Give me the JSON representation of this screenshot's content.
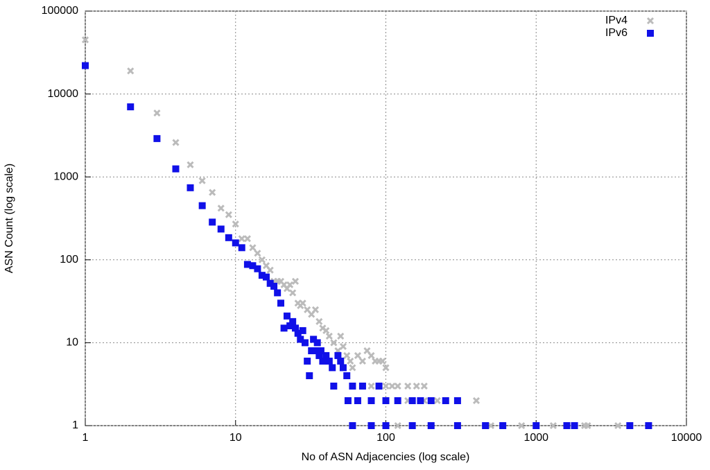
{
  "chart_data": {
    "type": "scatter",
    "xlabel": "No of ASN Adjacencies (log scale)",
    "ylabel": "ASN Count (log scale)",
    "xscale": "log",
    "yscale": "log",
    "xlim": [
      1,
      10000
    ],
    "ylim": [
      1,
      100000
    ],
    "xticks": [
      1,
      10,
      100,
      1000,
      10000
    ],
    "yticks": [
      1,
      10,
      100,
      1000,
      10000,
      100000
    ],
    "grid": true,
    "legend": "top-right",
    "series": [
      {
        "name": "IPv4",
        "color": "#bbbbbb",
        "marker": "x",
        "x": [
          1,
          2,
          3,
          4,
          5,
          6,
          7,
          8,
          9,
          10,
          11,
          12,
          13,
          14,
          15,
          16,
          17,
          18,
          19,
          20,
          21,
          22,
          23,
          24,
          25,
          26,
          27,
          28,
          30,
          32,
          34,
          36,
          38,
          40,
          42,
          45,
          48,
          50,
          52,
          55,
          58,
          60,
          65,
          70,
          75,
          80,
          85,
          90,
          95,
          100,
          70,
          80,
          90,
          100,
          110,
          120,
          140,
          160,
          180,
          140,
          180,
          220,
          250,
          400,
          120,
          200,
          300,
          500,
          800,
          1300,
          2100,
          2200,
          3500
        ],
        "values": [
          45000,
          19000,
          5900,
          2600,
          1400,
          900,
          650,
          420,
          350,
          270,
          180,
          180,
          140,
          120,
          100,
          85,
          75,
          55,
          55,
          55,
          50,
          45,
          50,
          40,
          55,
          30,
          28,
          30,
          25,
          22,
          25,
          18,
          15,
          14,
          12,
          10,
          8,
          12,
          9,
          7,
          6,
          5,
          7,
          6,
          8,
          7,
          6,
          6,
          6,
          5,
          3,
          3,
          3,
          3,
          3,
          3,
          3,
          3,
          3,
          2,
          2,
          2,
          2,
          2,
          1,
          1,
          1,
          1,
          1,
          1,
          1,
          1,
          1
        ]
      },
      {
        "name": "IPv6",
        "color": "#1010e8",
        "marker": "square",
        "x": [
          1,
          2,
          3,
          4,
          5,
          6,
          7,
          8,
          9,
          10,
          11,
          12,
          13,
          14,
          15,
          16,
          17,
          18,
          19,
          20,
          21,
          22,
          23,
          24,
          25,
          26,
          27,
          28,
          29,
          30,
          31,
          32,
          33,
          34,
          35,
          36,
          37,
          38,
          40,
          42,
          44,
          45,
          48,
          50,
          52,
          55,
          56,
          60,
          65,
          70,
          80,
          90,
          100,
          120,
          150,
          170,
          200,
          250,
          300,
          60,
          80,
          100,
          150,
          200,
          300,
          460,
          600,
          1000,
          1600,
          1800,
          4200,
          5600
        ],
        "values": [
          22000,
          7000,
          2900,
          1250,
          740,
          450,
          285,
          235,
          185,
          160,
          140,
          88,
          85,
          78,
          65,
          62,
          52,
          48,
          40,
          30,
          15,
          21,
          16,
          18,
          15,
          13,
          11,
          14,
          10,
          6,
          4,
          8,
          11,
          8,
          10,
          7,
          8,
          6,
          7,
          6,
          5,
          3,
          7,
          6,
          5,
          4,
          2,
          3,
          2,
          3,
          2,
          3,
          2,
          2,
          2,
          2,
          2,
          2,
          2,
          1,
          1,
          1,
          1,
          1,
          1,
          1,
          1,
          1,
          1,
          1,
          1,
          1
        ]
      }
    ]
  }
}
